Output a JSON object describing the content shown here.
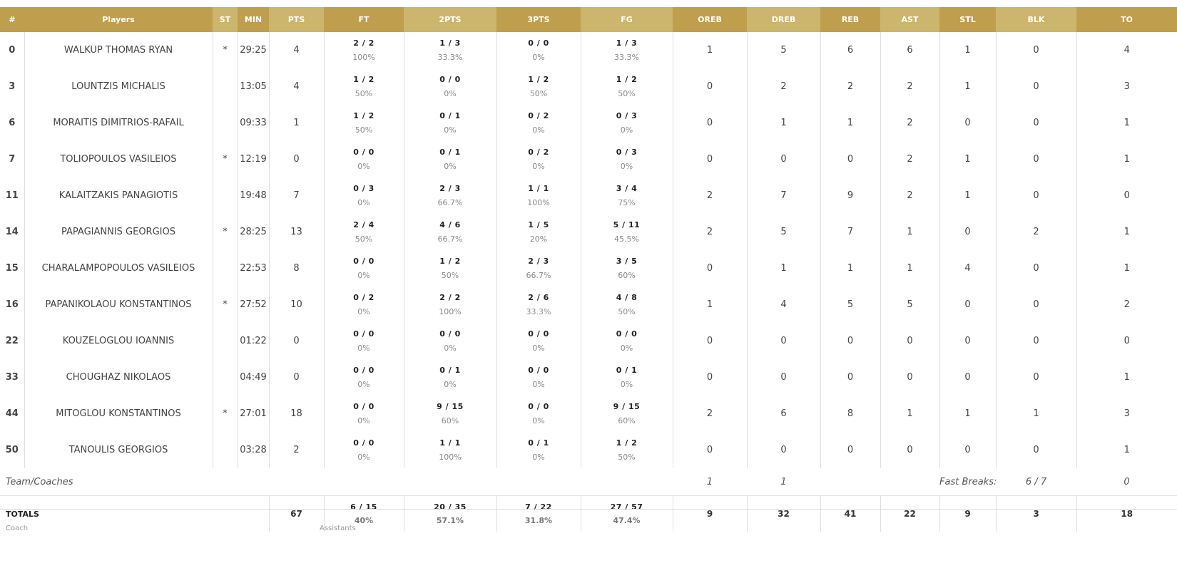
{
  "columns": [
    "#",
    "Players",
    "ST",
    "MIN",
    "PTS",
    "FT",
    "2PTS",
    "3PTS",
    "FG",
    "OREB",
    "DREB",
    "REB",
    "AST",
    "STL",
    "BLK",
    "TO"
  ],
  "players": [
    {
      "num": "0",
      "name": "WALKUP THOMAS RYAN",
      "st": "*",
      "min": "29:25",
      "pts": "4",
      "ft": "2 / 2",
      "ft_pct": "100%",
      "p2": "1 / 3",
      "p2_pct": "33.3%",
      "p3": "0 / 0",
      "p3_pct": "0%",
      "fg": "1 / 3",
      "fg_pct": "33.3%",
      "oreb": "1",
      "dreb": "5",
      "reb": "6",
      "ast": "6",
      "stl": "1",
      "blk": "0",
      "to": "4"
    },
    {
      "num": "3",
      "name": "LOUNTZIS MICHALIS",
      "st": "",
      "min": "13:05",
      "pts": "4",
      "ft": "1 / 2",
      "ft_pct": "50%",
      "p2": "0 / 0",
      "p2_pct": "0%",
      "p3": "1 / 2",
      "p3_pct": "50%",
      "fg": "1 / 2",
      "fg_pct": "50%",
      "oreb": "0",
      "dreb": "2",
      "reb": "2",
      "ast": "2",
      "stl": "1",
      "blk": "0",
      "to": "3"
    },
    {
      "num": "6",
      "name": "MORAITIS DIMITRIOS-RAFAIL",
      "st": "",
      "min": "09:33",
      "pts": "1",
      "ft": "1 / 2",
      "ft_pct": "50%",
      "p2": "0 / 1",
      "p2_pct": "0%",
      "p3": "0 / 2",
      "p3_pct": "0%",
      "fg": "0 / 3",
      "fg_pct": "0%",
      "oreb": "0",
      "dreb": "1",
      "reb": "1",
      "ast": "2",
      "stl": "0",
      "blk": "0",
      "to": "1"
    },
    {
      "num": "7",
      "name": "TOLIOPOULOS VASILEIOS",
      "st": "*",
      "min": "12:19",
      "pts": "0",
      "ft": "0 / 0",
      "ft_pct": "0%",
      "p2": "0 / 1",
      "p2_pct": "0%",
      "p3": "0 / 2",
      "p3_pct": "0%",
      "fg": "0 / 3",
      "fg_pct": "0%",
      "oreb": "0",
      "dreb": "0",
      "reb": "0",
      "ast": "2",
      "stl": "1",
      "blk": "0",
      "to": "1"
    },
    {
      "num": "11",
      "name": "KALAITZAKIS PANAGIOTIS",
      "st": "",
      "min": "19:48",
      "pts": "7",
      "ft": "0 / 3",
      "ft_pct": "0%",
      "p2": "2 / 3",
      "p2_pct": "66.7%",
      "p3": "1 / 1",
      "p3_pct": "100%",
      "fg": "3 / 4",
      "fg_pct": "75%",
      "oreb": "2",
      "dreb": "7",
      "reb": "9",
      "ast": "2",
      "stl": "1",
      "blk": "0",
      "to": "0"
    },
    {
      "num": "14",
      "name": "PAPAGIANNIS GEORGIOS",
      "st": "*",
      "min": "28:25",
      "pts": "13",
      "ft": "2 / 4",
      "ft_pct": "50%",
      "p2": "4 / 6",
      "p2_pct": "66.7%",
      "p3": "1 / 5",
      "p3_pct": "20%",
      "fg": "5 / 11",
      "fg_pct": "45.5%",
      "oreb": "2",
      "dreb": "5",
      "reb": "7",
      "ast": "1",
      "stl": "0",
      "blk": "2",
      "to": "1"
    },
    {
      "num": "15",
      "name": "CHARALAMPOPOULOS VASILEIOS",
      "st": "",
      "min": "22:53",
      "pts": "8",
      "ft": "0 / 0",
      "ft_pct": "0%",
      "p2": "1 / 2",
      "p2_pct": "50%",
      "p3": "2 / 3",
      "p3_pct": "66.7%",
      "fg": "3 / 5",
      "fg_pct": "60%",
      "oreb": "0",
      "dreb": "1",
      "reb": "1",
      "ast": "1",
      "stl": "4",
      "blk": "0",
      "to": "1"
    },
    {
      "num": "16",
      "name": "PAPANIKOLAOU KONSTANTINOS",
      "st": "*",
      "min": "27:52",
      "pts": "10",
      "ft": "0 / 2",
      "ft_pct": "0%",
      "p2": "2 / 2",
      "p2_pct": "100%",
      "p3": "2 / 6",
      "p3_pct": "33.3%",
      "fg": "4 / 8",
      "fg_pct": "50%",
      "oreb": "1",
      "dreb": "4",
      "reb": "5",
      "ast": "5",
      "stl": "0",
      "blk": "0",
      "to": "2"
    },
    {
      "num": "22",
      "name": "KOUZELOGLOU IOANNIS",
      "st": "",
      "min": "01:22",
      "pts": "0",
      "ft": "0 / 0",
      "ft_pct": "0%",
      "p2": "0 / 0",
      "p2_pct": "0%",
      "p3": "0 / 0",
      "p3_pct": "0%",
      "fg": "0 / 0",
      "fg_pct": "0%",
      "oreb": "0",
      "dreb": "0",
      "reb": "0",
      "ast": "0",
      "stl": "0",
      "blk": "0",
      "to": "0"
    },
    {
      "num": "33",
      "name": "CHOUGHAZ NIKOLAOS",
      "st": "",
      "min": "04:49",
      "pts": "0",
      "ft": "0 / 0",
      "ft_pct": "0%",
      "p2": "0 / 1",
      "p2_pct": "0%",
      "p3": "0 / 0",
      "p3_pct": "0%",
      "fg": "0 / 1",
      "fg_pct": "0%",
      "oreb": "0",
      "dreb": "0",
      "reb": "0",
      "ast": "0",
      "stl": "0",
      "blk": "0",
      "to": "1"
    },
    {
      "num": "44",
      "name": "MITOGLOU KONSTANTINOS",
      "st": "*",
      "min": "27:01",
      "pts": "18",
      "ft": "0 / 0",
      "ft_pct": "0%",
      "p2": "9 / 15",
      "p2_pct": "60%",
      "p3": "0 / 0",
      "p3_pct": "0%",
      "fg": "9 / 15",
      "fg_pct": "60%",
      "oreb": "2",
      "dreb": "6",
      "reb": "8",
      "ast": "1",
      "stl": "1",
      "blk": "1",
      "to": "3"
    },
    {
      "num": "50",
      "name": "TANOULIS GEORGIOS",
      "st": "",
      "min": "03:28",
      "pts": "2",
      "ft": "0 / 0",
      "ft_pct": "0%",
      "p2": "1 / 1",
      "p2_pct": "100%",
      "p3": "0 / 1",
      "p3_pct": "0%",
      "fg": "1 / 2",
      "fg_pct": "50%",
      "oreb": "0",
      "dreb": "0",
      "reb": "0",
      "ast": "0",
      "stl": "0",
      "blk": "0",
      "to": "1"
    }
  ],
  "team": {
    "label": "Team/Coaches",
    "oreb": "1",
    "dreb": "1",
    "fast_breaks_label": "Fast Breaks:",
    "fast_breaks_value": "6 / 7",
    "to": "0"
  },
  "totals": {
    "label": "TOTALS",
    "pts": "67",
    "ft": "6 / 15",
    "ft_pct": "40%",
    "p2": "20 / 35",
    "p2_pct": "57.1%",
    "p3": "7 / 22",
    "p3_pct": "31.8%",
    "fg": "27 / 57",
    "fg_pct": "47.4%",
    "oreb": "9",
    "dreb": "32",
    "reb": "41",
    "ast": "22",
    "stl": "9",
    "blk": "3",
    "to": "18"
  },
  "staff": {
    "coach_label": "Coach",
    "assistants_label": "Assistants"
  },
  "colors": {
    "header_dark": "#bf9f4e",
    "header_light": "#ccb56c"
  }
}
